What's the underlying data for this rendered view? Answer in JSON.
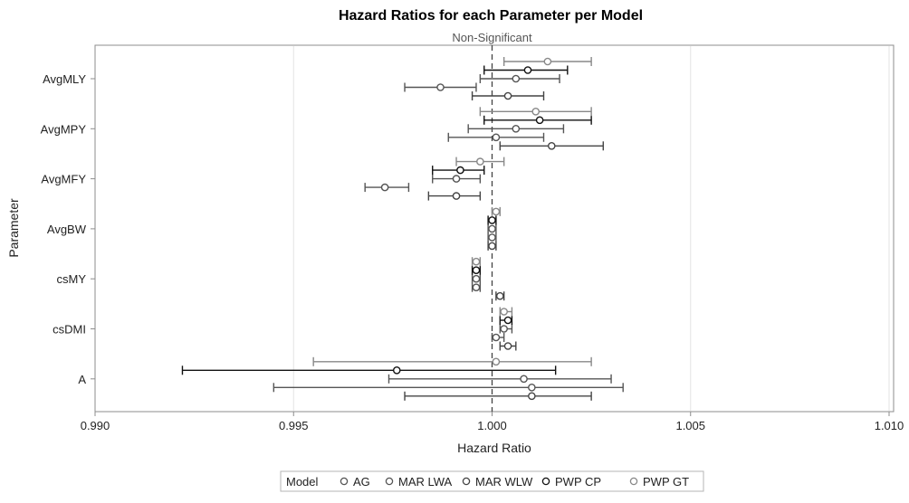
{
  "chart_data": {
    "type": "scatter",
    "title": "Hazard Ratios for each Parameter per Model",
    "xlabel": "Hazard Ratio",
    "ylabel": "Parameter",
    "xlim": [
      0.99,
      1.01
    ],
    "x_ticks": [
      "0.990",
      "0.995",
      "1.000",
      "1.005",
      "1.010"
    ],
    "x_tick_values": [
      0.99,
      0.995,
      1.0,
      1.005,
      1.01
    ],
    "reference_line": {
      "value": 1.0,
      "label": "Non-Significant",
      "style": "dashed"
    },
    "grid": "vertical",
    "categories": [
      "AvgMLY",
      "AvgMPY",
      "AvgMFY",
      "AvgBW",
      "csMY",
      "csDMI",
      "A"
    ],
    "legend": {
      "title": "Model",
      "placement": "bottom-center"
    },
    "series": [
      {
        "name": "AG",
        "color": "#555555",
        "points": [
          {
            "category": "AvgMLY",
            "estimate": 1.0006,
            "lower": 0.9997,
            "upper": 1.0017
          },
          {
            "category": "AvgMPY",
            "estimate": 1.0006,
            "lower": 0.9994,
            "upper": 1.0018
          },
          {
            "category": "AvgMFY",
            "estimate": 0.9991,
            "lower": 0.9985,
            "upper": 0.9997
          },
          {
            "category": "AvgBW",
            "estimate": 1.0,
            "lower": 0.9999,
            "upper": 1.0001
          },
          {
            "category": "csMY",
            "estimate": 0.9996,
            "lower": 0.9995,
            "upper": 0.9997
          },
          {
            "category": "csDMI",
            "estimate": 1.0003,
            "lower": 1.0002,
            "upper": 1.0005
          },
          {
            "category": "A",
            "estimate": 1.0008,
            "lower": 0.9974,
            "upper": 1.003
          }
        ]
      },
      {
        "name": "MAR LWA",
        "color": "#555555",
        "points": [
          {
            "category": "AvgMLY",
            "estimate": 0.9987,
            "lower": 0.9978,
            "upper": 0.9996
          },
          {
            "category": "AvgMPY",
            "estimate": 1.0001,
            "lower": 0.9989,
            "upper": 1.0013
          },
          {
            "category": "AvgMFY",
            "estimate": 0.9973,
            "lower": 0.9968,
            "upper": 0.9979
          },
          {
            "category": "AvgBW",
            "estimate": 1.0,
            "lower": 0.9999,
            "upper": 1.0001
          },
          {
            "category": "csMY",
            "estimate": 0.9996,
            "lower": 0.9995,
            "upper": 0.9997
          },
          {
            "category": "csDMI",
            "estimate": 1.0001,
            "lower": 1.0,
            "upper": 1.0003
          },
          {
            "category": "A",
            "estimate": 1.001,
            "lower": 0.9945,
            "upper": 1.0033
          }
        ]
      },
      {
        "name": "MAR WLW",
        "color": "#444444",
        "points": [
          {
            "category": "AvgMLY",
            "estimate": 1.0004,
            "lower": 0.9995,
            "upper": 1.0013
          },
          {
            "category": "AvgMPY",
            "estimate": 1.0015,
            "lower": 1.0002,
            "upper": 1.0028
          },
          {
            "category": "AvgMFY",
            "estimate": 0.9991,
            "lower": 0.9984,
            "upper": 0.9997
          },
          {
            "category": "AvgBW",
            "estimate": 1.0,
            "lower": 0.9999,
            "upper": 1.0001
          },
          {
            "category": "csMY",
            "estimate": 1.0002,
            "lower": 1.0001,
            "upper": 1.0003
          },
          {
            "category": "csDMI",
            "estimate": 1.0004,
            "lower": 1.0002,
            "upper": 1.0006
          },
          {
            "category": "A",
            "estimate": 1.001,
            "lower": 0.9978,
            "upper": 1.0025
          }
        ]
      },
      {
        "name": "PWP CP",
        "color": "#111111",
        "points": [
          {
            "category": "AvgMLY",
            "estimate": 1.0009,
            "lower": 0.9998,
            "upper": 1.0019
          },
          {
            "category": "AvgMPY",
            "estimate": 1.0012,
            "lower": 0.9998,
            "upper": 1.0025
          },
          {
            "category": "AvgMFY",
            "estimate": 0.9992,
            "lower": 0.9985,
            "upper": 0.9998
          },
          {
            "category": "AvgBW",
            "estimate": 1.0,
            "lower": 0.9999,
            "upper": 1.0001
          },
          {
            "category": "csMY",
            "estimate": 0.9996,
            "lower": 0.9995,
            "upper": 0.9997
          },
          {
            "category": "csDMI",
            "estimate": 1.0004,
            "lower": 1.0002,
            "upper": 1.0005
          },
          {
            "category": "A",
            "estimate": 0.9976,
            "lower": 0.9922,
            "upper": 1.0016
          }
        ]
      },
      {
        "name": "PWP GT",
        "color": "#888888",
        "points": [
          {
            "category": "AvgMLY",
            "estimate": 1.0014,
            "lower": 1.0003,
            "upper": 1.0025
          },
          {
            "category": "AvgMPY",
            "estimate": 1.0011,
            "lower": 0.9997,
            "upper": 1.0025
          },
          {
            "category": "AvgMFY",
            "estimate": 0.9997,
            "lower": 0.9991,
            "upper": 1.0003
          },
          {
            "category": "AvgBW",
            "estimate": 1.0001,
            "lower": 1.0,
            "upper": 1.0002
          },
          {
            "category": "csMY",
            "estimate": 0.9996,
            "lower": 0.9995,
            "upper": 0.9997
          },
          {
            "category": "csDMI",
            "estimate": 1.0003,
            "lower": 1.0002,
            "upper": 1.0005
          },
          {
            "category": "A",
            "estimate": 1.0001,
            "lower": 0.9955,
            "upper": 1.0025
          }
        ]
      }
    ]
  }
}
